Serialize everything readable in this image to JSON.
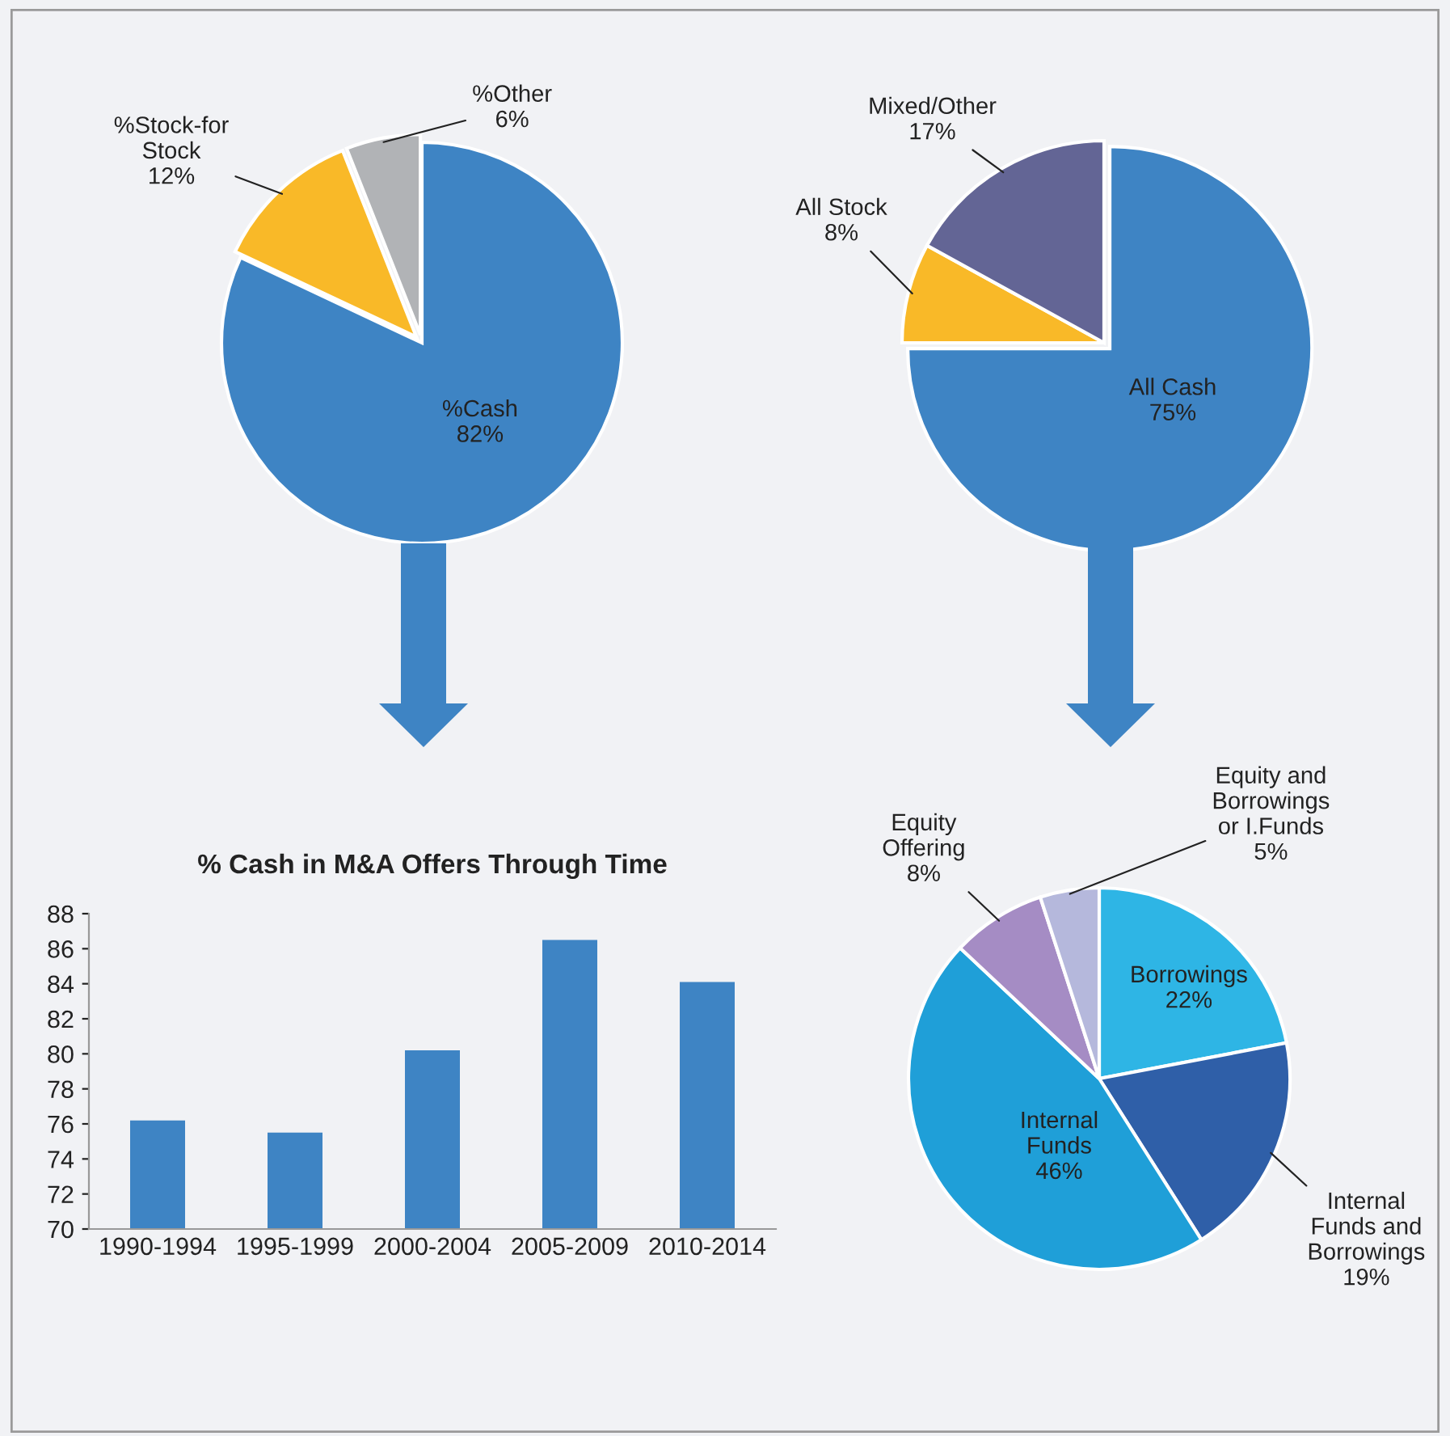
{
  "chart_data": [
    {
      "type": "pie",
      "categories": [
        "%Cash",
        "%Stock-for\nStock",
        "%Other"
      ],
      "values": [
        82,
        12,
        6
      ],
      "value_labels": [
        "82%",
        "12%",
        "6%"
      ],
      "colors": [
        "#3e84c4",
        "#f9b928",
        "#b1b3b6"
      ]
    },
    {
      "type": "pie",
      "categories": [
        "All Cash",
        "All Stock",
        "Mixed/Other"
      ],
      "values": [
        75,
        8,
        17
      ],
      "value_labels": [
        "75%",
        "8%",
        "17%"
      ],
      "colors": [
        "#3e84c4",
        "#f9b928",
        "#636595"
      ]
    },
    {
      "type": "bar",
      "title": "% Cash in M&A Offers Through Time",
      "categories": [
        "1990-1994",
        "1995-1999",
        "2000-2004",
        "2005-2009",
        "2010-2014"
      ],
      "values": [
        76.2,
        75.5,
        80.2,
        86.5,
        84.1
      ],
      "color": "#3e84c4",
      "ylim": [
        70,
        88
      ],
      "yticks": [
        70,
        72,
        74,
        76,
        78,
        80,
        82,
        84,
        86,
        88
      ]
    },
    {
      "type": "pie",
      "categories": [
        "Borrowings",
        "Internal\nFunds and\nBorrowings",
        "Internal\nFunds",
        "Equity\nOffering",
        "Equity and\nBorrowings\nor I.Funds"
      ],
      "values": [
        22,
        19,
        46,
        8,
        5
      ],
      "value_labels": [
        "22%",
        "19%",
        "46%",
        "8%",
        "5%"
      ],
      "colors": [
        "#2eb5e5",
        "#2f5fa8",
        "#1f9fd8",
        "#a58cc4",
        "#b5b8dc"
      ]
    }
  ]
}
